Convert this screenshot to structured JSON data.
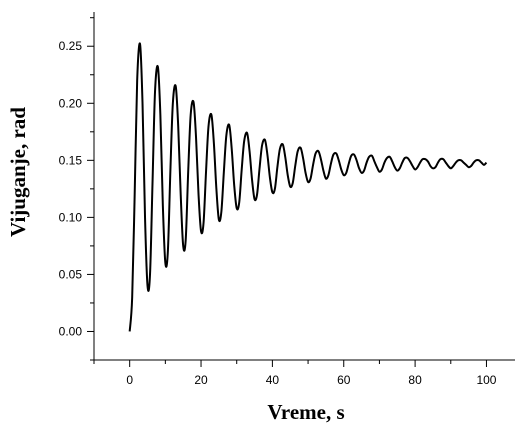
{
  "chart_data": {
    "type": "line",
    "title": "",
    "xlabel": "Vreme, s",
    "ylabel": "Vijuganje, rad",
    "xlim": [
      -10,
      108
    ],
    "ylim": [
      -0.025,
      0.28
    ],
    "x_ticks_major": [
      0,
      20,
      40,
      60,
      80,
      100
    ],
    "x_tick_labels": [
      "0",
      "20",
      "40",
      "60",
      "80",
      "100"
    ],
    "x_ticks_minor": [
      -10,
      10,
      30,
      50,
      70,
      90
    ],
    "y_ticks_major": [
      0.0,
      0.05,
      0.1,
      0.15,
      0.2,
      0.25
    ],
    "y_tick_labels": [
      "0.00",
      "0.05",
      "0.10",
      "0.15",
      "0.20",
      "0.25"
    ],
    "y_ticks_minor": [
      -0.025,
      0.025,
      0.075,
      0.125,
      0.175,
      0.225,
      0.275
    ],
    "grid": false,
    "legend": "none",
    "series": [
      {
        "color": "#000000",
        "x": [
          0,
          0.7,
          1.4,
          2.1,
          2.9,
          3.6,
          4.3,
          5.0,
          5.7,
          6.4,
          7.1,
          7.9,
          8.6,
          9.3,
          10.0,
          10.7,
          11.4,
          12.1,
          12.9,
          13.6,
          14.3,
          15.0,
          15.7,
          16.4,
          17.1,
          17.9,
          18.6,
          19.3,
          20.0,
          20.7,
          21.4,
          22.1,
          22.9,
          23.6,
          24.3,
          25.0,
          25.7,
          26.4,
          27.1,
          27.9,
          28.6,
          29.3,
          30.0,
          30.7,
          31.4,
          32.1,
          32.9,
          33.6,
          34.3,
          35.0,
          35.7,
          36.4,
          37.1,
          37.9,
          38.6,
          39.3,
          40.0,
          40.7,
          41.4,
          42.1,
          42.9,
          43.6,
          44.3,
          45.0,
          45.7,
          46.4,
          47.1,
          47.9,
          48.6,
          49.3,
          50.0,
          50.7,
          51.4,
          52.1,
          52.9,
          53.6,
          54.3,
          55.0,
          55.7,
          56.4,
          57.1,
          57.9,
          58.6,
          59.3,
          60.0,
          60.7,
          61.4,
          62.1,
          62.9,
          63.6,
          64.3,
          65.0,
          65.7,
          66.4,
          67.1,
          67.9,
          68.6,
          69.3,
          70.0,
          70.7,
          71.4,
          72.1,
          72.9,
          73.6,
          74.3,
          75.0,
          75.7,
          76.4,
          77.1,
          77.9,
          78.6,
          79.3,
          80.0,
          80.7,
          81.4,
          82.1,
          82.9,
          83.6,
          84.3,
          85.0,
          85.7,
          86.4,
          87.1,
          87.9,
          88.6,
          89.3,
          90.0,
          90.7,
          91.4,
          92.1,
          92.9,
          93.6,
          94.3,
          95.0,
          95.7,
          96.4,
          97.1,
          97.9,
          98.6,
          99.3,
          100.0
        ],
        "y": [
          0.0,
          0.03,
          0.12,
          0.22,
          0.252,
          0.2,
          0.1,
          0.04,
          0.05,
          0.13,
          0.21,
          0.232,
          0.19,
          0.11,
          0.06,
          0.07,
          0.14,
          0.2,
          0.215,
          0.18,
          0.12,
          0.075,
          0.08,
          0.14,
          0.19,
          0.201,
          0.17,
          0.12,
          0.088,
          0.095,
          0.14,
          0.18,
          0.19,
          0.165,
          0.125,
          0.098,
          0.105,
          0.14,
          0.172,
          0.181,
          0.16,
          0.128,
          0.108,
          0.113,
          0.142,
          0.167,
          0.174,
          0.158,
          0.133,
          0.116,
          0.12,
          0.143,
          0.163,
          0.168,
          0.155,
          0.135,
          0.122,
          0.125,
          0.144,
          0.16,
          0.164,
          0.153,
          0.137,
          0.127,
          0.13,
          0.145,
          0.158,
          0.161,
          0.152,
          0.139,
          0.131,
          0.134,
          0.146,
          0.156,
          0.158,
          0.151,
          0.141,
          0.134,
          0.137,
          0.147,
          0.155,
          0.156,
          0.15,
          0.142,
          0.137,
          0.139,
          0.147,
          0.154,
          0.155,
          0.15,
          0.143,
          0.139,
          0.141,
          0.148,
          0.153,
          0.154,
          0.149,
          0.144,
          0.14,
          0.142,
          0.148,
          0.152,
          0.153,
          0.149,
          0.144,
          0.141,
          0.143,
          0.148,
          0.152,
          0.152,
          0.149,
          0.145,
          0.142,
          0.144,
          0.148,
          0.151,
          0.151,
          0.149,
          0.145,
          0.143,
          0.144,
          0.148,
          0.151,
          0.151,
          0.148,
          0.145,
          0.143,
          0.145,
          0.148,
          0.15,
          0.15,
          0.148,
          0.146,
          0.144,
          0.145,
          0.148,
          0.15,
          0.15,
          0.148,
          0.146,
          0.148
        ]
      }
    ]
  }
}
